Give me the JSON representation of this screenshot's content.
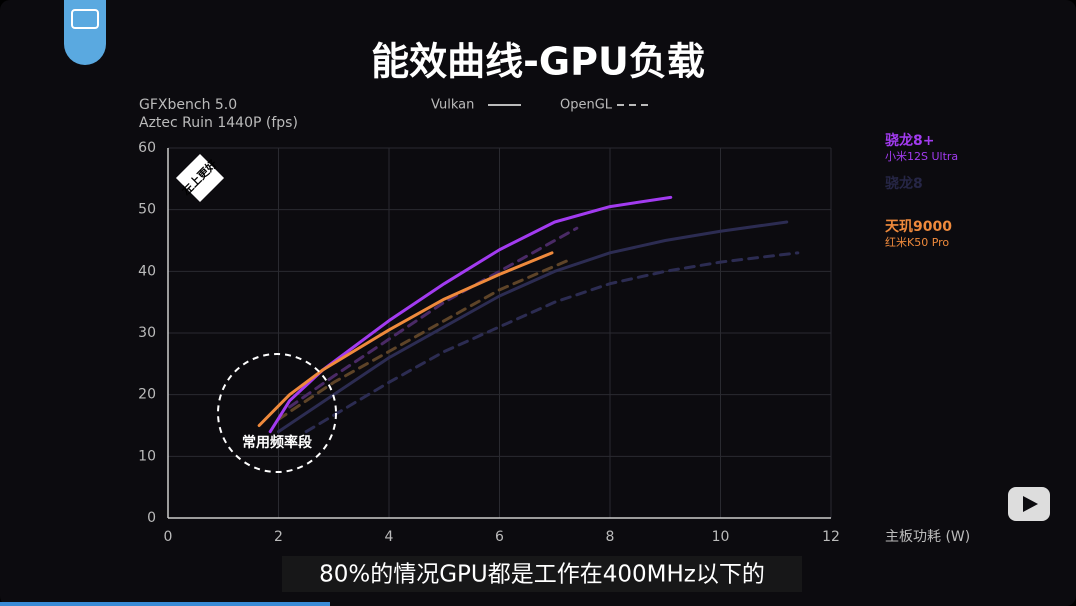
{
  "chart_data": {
    "type": "line",
    "title": "能效曲线-GPU负载",
    "benchmark": "GFXbench 5.0",
    "test": "Aztec Ruin 1440P (fps)",
    "x_label": "主板功耗 (W)",
    "xlim": [
      0,
      12
    ],
    "xticks": [
      0,
      2,
      4,
      6,
      8,
      10,
      12
    ],
    "ylim": [
      0,
      60
    ],
    "yticks": [
      0,
      10,
      20,
      30,
      40,
      50,
      60
    ],
    "grid": true,
    "api_styles": [
      {
        "label": "Vulkan",
        "dash": false
      },
      {
        "label": "OpenGL",
        "dash": true
      }
    ],
    "chips": [
      {
        "name": "骁龙8+",
        "device": "小米12S Ultra",
        "color": "#a23bf0"
      },
      {
        "name": "骁龙8",
        "color": "#262646"
      },
      {
        "name": "天玑9000",
        "device": "红米K50 Pro",
        "color": "#ef8a3c"
      }
    ],
    "series": [
      {
        "chip": 1,
        "api": 0,
        "color": "#2c2c52",
        "x": [
          2,
          3,
          4,
          5,
          6,
          7,
          8,
          9,
          10,
          11.2
        ],
        "values": [
          14,
          20,
          26,
          31,
          36,
          40,
          43,
          45,
          46.5,
          48
        ]
      },
      {
        "chip": 1,
        "api": 1,
        "color": "#2c2c52",
        "x": [
          2.5,
          4,
          5,
          6,
          7,
          8,
          9,
          10,
          11.4
        ],
        "values": [
          14,
          22,
          27,
          31,
          35,
          38,
          40,
          41.5,
          43
        ]
      },
      {
        "chip": 0,
        "api": 1,
        "color": "#4a2a66",
        "x": [
          2.2,
          3,
          4,
          5,
          6,
          7,
          7.4
        ],
        "values": [
          18,
          23,
          29,
          35,
          40,
          45,
          47
        ]
      },
      {
        "chip": 2,
        "api": 1,
        "color": "#5e4428",
        "x": [
          2,
          3,
          4,
          5,
          6,
          7.3
        ],
        "values": [
          16,
          22,
          27,
          32,
          37,
          42
        ]
      },
      {
        "chip": 0,
        "api": 0,
        "color": "#a23bf0",
        "x": [
          1.85,
          2.2,
          2.8,
          4,
          5,
          6,
          7,
          8,
          9.1
        ],
        "values": [
          14,
          19,
          24,
          32,
          38,
          43.5,
          48,
          50.5,
          52
        ]
      },
      {
        "chip": 2,
        "api": 0,
        "color": "#ef8a3c",
        "x": [
          1.65,
          2.2,
          2.8,
          4,
          5,
          6,
          6.95
        ],
        "values": [
          15,
          20,
          24,
          30.5,
          35.5,
          39.5,
          43
        ]
      }
    ],
    "badge": "左上更好",
    "annotation": "常用频率段"
  },
  "caption": "80%的情况GPU都是工作在400MHz以下的"
}
